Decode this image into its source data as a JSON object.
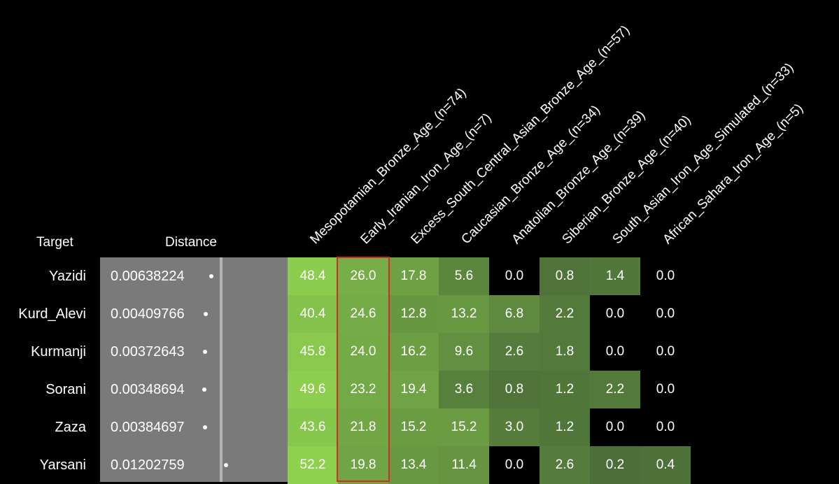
{
  "headers": {
    "target": "Target",
    "distance": "Distance"
  },
  "chart_data": {
    "type": "heatmap",
    "columns": [
      "Mesopotamian_Bronze_Age_(n=74)",
      "Early_Iranian_Iron_Age_(n=7)",
      "Excess_South_Central_Asian_Bronze_Age_(n=57)",
      "Caucasian_Bronze_Age_(n=34)",
      "Anatolian_Bronze_Age_(n=39)",
      "Siberian_Bronze_Age_(n=40)",
      "South_Asian_Iron_Age_Simulated_(n=33)",
      "African_Sahara_Iron_Age_(n=5)"
    ],
    "rows": [
      {
        "target": "Yazidi",
        "distance": "0.00638224",
        "distance_value": 0.00638224,
        "values": [
          "48.4",
          "26.0",
          "17.8",
          "5.6",
          "0.0",
          "0.8",
          "1.4",
          "0.0"
        ]
      },
      {
        "target": "Kurd_Alevi",
        "distance": "0.00409766",
        "distance_value": 0.00409766,
        "values": [
          "40.4",
          "24.6",
          "12.8",
          "13.2",
          "6.8",
          "2.2",
          "0.0",
          "0.0"
        ]
      },
      {
        "target": "Kurmanji",
        "distance": "0.00372643",
        "distance_value": 0.00372643,
        "values": [
          "45.8",
          "24.0",
          "16.2",
          "9.6",
          "2.6",
          "1.8",
          "0.0",
          "0.0"
        ]
      },
      {
        "target": "Sorani",
        "distance": "0.00348694",
        "distance_value": 0.00348694,
        "values": [
          "49.6",
          "23.2",
          "19.4",
          "3.6",
          "0.8",
          "1.2",
          "2.2",
          "0.0"
        ]
      },
      {
        "target": "Zaza",
        "distance": "0.00384697",
        "distance_value": 0.00384697,
        "values": [
          "43.6",
          "21.8",
          "15.2",
          "15.2",
          "3.0",
          "1.2",
          "0.0",
          "0.0"
        ]
      },
      {
        "target": "Yarsani",
        "distance": "0.01202759",
        "distance_value": 0.01202759,
        "values": [
          "52.2",
          "19.8",
          "13.4",
          "11.4",
          "0.0",
          "2.6",
          "0.2",
          "0.4"
        ]
      }
    ],
    "highlighted_column": "Early_Iranian_Iron_Age_(n=7)",
    "colors": {
      "zero": "#000000",
      "low": "#4a6b38",
      "high": "#8fd14f",
      "distance_panel": "#7a7a7a",
      "highlight_border": "#d42a2a"
    }
  }
}
